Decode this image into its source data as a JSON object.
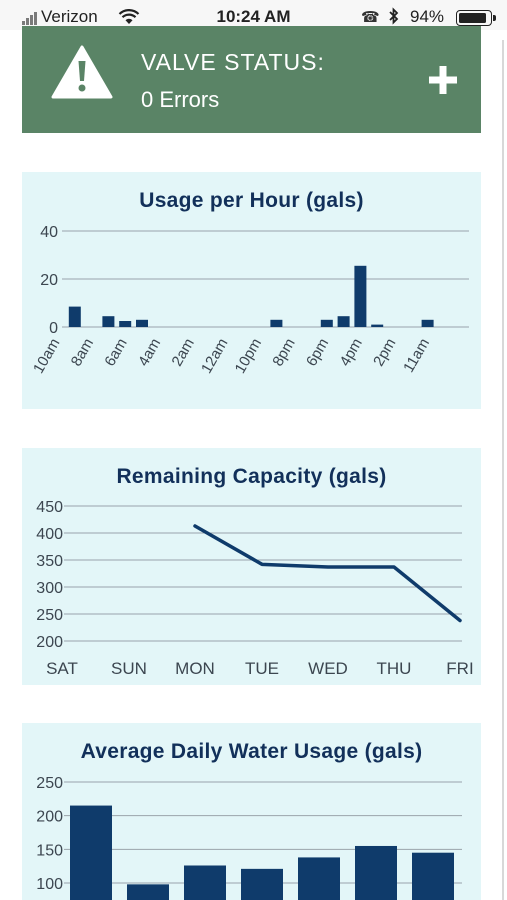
{
  "status_bar": {
    "carrier": "Verizon",
    "time": "10:24 AM",
    "battery_percent": "94%",
    "battery_level": 0.94
  },
  "valve": {
    "title": "VALVE STATUS:",
    "subtitle": "0 Errors"
  },
  "colors": {
    "banner": "#5a8466",
    "card_bg": "#e3f6f8",
    "bar": "#0f3b6b",
    "title_text": "#12305a"
  },
  "charts": {
    "usage_per_hour": {
      "type": "bar",
      "title": "Usage per Hour (gals)",
      "tick_labels": [
        "10am",
        "8am",
        "6am",
        "4am",
        "2am",
        "12am",
        "10pm",
        "8pm",
        "6pm",
        "4pm",
        "2pm",
        "11am"
      ],
      "bars": [
        {
          "pos": 0.5,
          "value": 8.5
        },
        {
          "pos": 1.5,
          "value": 4.5
        },
        {
          "pos": 2.0,
          "value": 2.5
        },
        {
          "pos": 2.5,
          "value": 3.0
        },
        {
          "pos": 6.5,
          "value": 3.0
        },
        {
          "pos": 8.0,
          "value": 3.0
        },
        {
          "pos": 8.5,
          "value": 4.5
        },
        {
          "pos": 9.0,
          "value": 25.5
        },
        {
          "pos": 9.5,
          "value": 1.0
        },
        {
          "pos": 11.0,
          "value": 3.0
        }
      ],
      "y_ticks": [
        0,
        20,
        40
      ],
      "ylim": [
        0,
        40
      ],
      "grid": true
    },
    "remaining_capacity": {
      "type": "line",
      "title": "Remaining Capacity (gals)",
      "categories": [
        "SAT",
        "SUN",
        "MON",
        "TUE",
        "WED",
        "THU",
        "FRI"
      ],
      "values": [
        null,
        null,
        413,
        342,
        337,
        337,
        238
      ],
      "y_ticks": [
        200,
        250,
        300,
        350,
        400,
        450
      ],
      "ylim": [
        200,
        450
      ],
      "grid": true
    },
    "avg_daily_usage": {
      "type": "bar",
      "title": "Average Daily Water Usage (gals)",
      "values": [
        215,
        98,
        126,
        121,
        138,
        155,
        145
      ],
      "y_ticks": [
        100,
        150,
        200,
        250
      ],
      "ylim": [
        100,
        250
      ],
      "grid": true
    }
  }
}
